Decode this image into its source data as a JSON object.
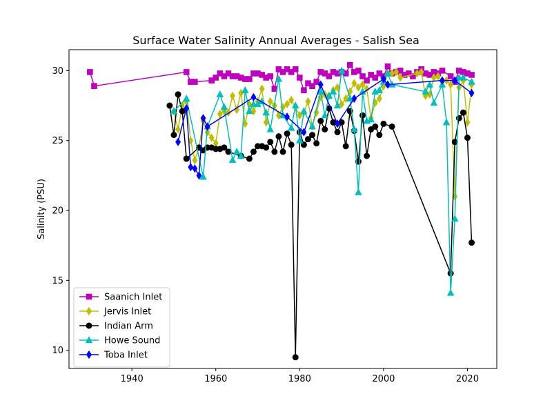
{
  "chart_data": {
    "type": "line",
    "title": "Surface Water Salinity Annual Averages - Salish Sea",
    "xlabel": "",
    "ylabel": "Salinity (PSU)",
    "xlim": [
      1925,
      2027
    ],
    "ylim": [
      8.7,
      31.5
    ],
    "xticks": [
      1940,
      1960,
      1980,
      2000,
      2020
    ],
    "yticks": [
      10,
      15,
      20,
      25,
      30
    ],
    "grid": false,
    "legend_position": "lower-left",
    "series": [
      {
        "name": "Saanich Inlet",
        "color": "#bf00bf",
        "marker": "square",
        "points": [
          [
            1930,
            29.9
          ],
          [
            1931,
            28.9
          ],
          [
            1953,
            29.9
          ],
          [
            1954,
            29.2
          ],
          [
            1955,
            29.2
          ],
          [
            1959,
            29.3
          ],
          [
            1960,
            29.5
          ],
          [
            1961,
            29.8
          ],
          [
            1962,
            29.6
          ],
          [
            1963,
            29.8
          ],
          [
            1964,
            29.6
          ],
          [
            1965,
            29.6
          ],
          [
            1966,
            29.5
          ],
          [
            1967,
            29.4
          ],
          [
            1968,
            29.4
          ],
          [
            1969,
            29.8
          ],
          [
            1970,
            29.8
          ],
          [
            1971,
            29.7
          ],
          [
            1972,
            29.5
          ],
          [
            1973,
            29.6
          ],
          [
            1974,
            28.7
          ],
          [
            1975,
            30.1
          ],
          [
            1976,
            29.9
          ],
          [
            1977,
            30.1
          ],
          [
            1978,
            29.9
          ],
          [
            1979,
            30.1
          ],
          [
            1980,
            29.5
          ],
          [
            1981,
            28.6
          ],
          [
            1982,
            29.1
          ],
          [
            1983,
            28.9
          ],
          [
            1984,
            29.2
          ],
          [
            1985,
            29.9
          ],
          [
            1986,
            29.8
          ],
          [
            1987,
            29.6
          ],
          [
            1988,
            29.9
          ],
          [
            1989,
            29.8
          ],
          [
            1990,
            29.9
          ],
          [
            1991,
            29.8
          ],
          [
            1992,
            30.4
          ],
          [
            1993,
            29.9
          ],
          [
            1994,
            30.0
          ],
          [
            1995,
            29.6
          ],
          [
            1996,
            29.3
          ],
          [
            1997,
            29.7
          ],
          [
            1998,
            29.5
          ],
          [
            1999,
            29.8
          ],
          [
            2000,
            29.6
          ],
          [
            2001,
            30.3
          ],
          [
            2002,
            29.8
          ],
          [
            2003,
            29.9
          ],
          [
            2004,
            30.0
          ],
          [
            2005,
            29.7
          ],
          [
            2006,
            29.8
          ],
          [
            2007,
            29.6
          ],
          [
            2008,
            29.9
          ],
          [
            2009,
            30.1
          ],
          [
            2010,
            29.8
          ],
          [
            2011,
            29.7
          ],
          [
            2012,
            29.9
          ],
          [
            2013,
            29.8
          ],
          [
            2014,
            30.0
          ],
          [
            2016,
            29.6
          ],
          [
            2017,
            29.2
          ],
          [
            2018,
            30.0
          ],
          [
            2019,
            29.9
          ],
          [
            2020,
            29.8
          ],
          [
            2021,
            29.7
          ]
        ]
      },
      {
        "name": "Jervis Inlet",
        "color": "#bfbf00",
        "marker": "diamond",
        "points": [
          [
            1950,
            27.1
          ],
          [
            1951,
            25.8
          ],
          [
            1952,
            27.5
          ],
          [
            1953,
            27.8
          ],
          [
            1954,
            25.0
          ],
          [
            1955,
            23.6
          ],
          [
            1956,
            24.5
          ],
          [
            1957,
            26.4
          ],
          [
            1958,
            25.6
          ],
          [
            1959,
            25.2
          ],
          [
            1960,
            24.8
          ],
          [
            1961,
            26.9
          ],
          [
            1962,
            27.1
          ],
          [
            1963,
            27.0
          ],
          [
            1964,
            28.2
          ],
          [
            1965,
            27.2
          ],
          [
            1966,
            28.4
          ],
          [
            1967,
            26.2
          ],
          [
            1968,
            27.6
          ],
          [
            1969,
            27.1
          ],
          [
            1970,
            27.8
          ],
          [
            1971,
            28.7
          ],
          [
            1972,
            26.3
          ],
          [
            1973,
            27.8
          ],
          [
            1974,
            27.5
          ],
          [
            1975,
            26.8
          ],
          [
            1976,
            27.4
          ],
          [
            1977,
            27.6
          ],
          [
            1978,
            27.9
          ],
          [
            1979,
            27.4
          ],
          [
            1980,
            26.8
          ],
          [
            1981,
            27.0
          ],
          [
            1982,
            27.8
          ],
          [
            1983,
            26.0
          ],
          [
            1984,
            27.0
          ],
          [
            1985,
            28.1
          ],
          [
            1986,
            28.3
          ],
          [
            1987,
            28.2
          ],
          [
            1988,
            28.6
          ],
          [
            1989,
            28.8
          ],
          [
            1990,
            27.6
          ],
          [
            1991,
            28.0
          ],
          [
            1992,
            28.5
          ],
          [
            1993,
            29.1
          ],
          [
            1994,
            28.8
          ],
          [
            1995,
            29.0
          ],
          [
            1996,
            28.7
          ],
          [
            1997,
            26.6
          ],
          [
            1998,
            27.7
          ],
          [
            1999,
            28.0
          ],
          [
            2000,
            28.9
          ],
          [
            2001,
            29.8
          ],
          [
            2002,
            29.8
          ],
          [
            2003,
            29.9
          ],
          [
            2004,
            29.5
          ],
          [
            2008,
            29.8
          ],
          [
            2009,
            29.9
          ],
          [
            2010,
            28.2
          ],
          [
            2011,
            28.3
          ],
          [
            2012,
            29.5
          ],
          [
            2013,
            29.6
          ],
          [
            2014,
            29.2
          ],
          [
            2015,
            29.3
          ],
          [
            2016,
            29.0
          ],
          [
            2017,
            21.0
          ],
          [
            2018,
            28.8
          ],
          [
            2019,
            29.3
          ],
          [
            2020,
            26.3
          ],
          [
            2021,
            29.0
          ]
        ]
      },
      {
        "name": "Indian Arm",
        "color": "#000000",
        "marker": "circle",
        "points": [
          [
            1949,
            27.5
          ],
          [
            1950,
            25.4
          ],
          [
            1951,
            28.3
          ],
          [
            1952,
            27.1
          ],
          [
            1953,
            23.7
          ],
          [
            1956,
            24.5
          ],
          [
            1957,
            24.3
          ],
          [
            1958,
            24.5
          ],
          [
            1959,
            24.5
          ],
          [
            1960,
            24.4
          ],
          [
            1961,
            24.4
          ],
          [
            1962,
            24.5
          ],
          [
            1963,
            24.2
          ],
          [
            1966,
            23.9
          ],
          [
            1968,
            23.7
          ],
          [
            1969,
            24.2
          ],
          [
            1970,
            24.6
          ],
          [
            1971,
            24.6
          ],
          [
            1972,
            24.5
          ],
          [
            1973,
            24.9
          ],
          [
            1974,
            24.2
          ],
          [
            1975,
            25.3
          ],
          [
            1976,
            24.2
          ],
          [
            1977,
            25.5
          ],
          [
            1978,
            24.7
          ],
          [
            1979,
            9.5
          ],
          [
            1980,
            25.6
          ],
          [
            1981,
            24.7
          ],
          [
            1982,
            25.1
          ],
          [
            1983,
            25.4
          ],
          [
            1984,
            24.8
          ],
          [
            1985,
            26.4
          ],
          [
            1986,
            25.8
          ],
          [
            1987,
            27.3
          ],
          [
            1988,
            26.3
          ],
          [
            1989,
            25.6
          ],
          [
            1990,
            26.3
          ],
          [
            1991,
            24.6
          ],
          [
            1992,
            27.1
          ],
          [
            1993,
            25.7
          ],
          [
            1994,
            23.5
          ],
          [
            1995,
            26.8
          ],
          [
            1996,
            23.9
          ],
          [
            1997,
            25.8
          ],
          [
            1998,
            26.0
          ],
          [
            1999,
            25.4
          ],
          [
            2000,
            26.2
          ],
          [
            2002,
            26.0
          ],
          [
            2016,
            15.5
          ],
          [
            2017,
            24.9
          ],
          [
            2018,
            26.6
          ],
          [
            2019,
            27.0
          ],
          [
            2020,
            25.2
          ],
          [
            2021,
            17.7
          ]
        ]
      },
      {
        "name": "Howe Sound",
        "color": "#00bfbf",
        "marker": "triangle",
        "points": [
          [
            1950,
            27.1
          ],
          [
            1953,
            28.0
          ],
          [
            1957,
            22.4
          ],
          [
            1958,
            26.0
          ],
          [
            1961,
            28.3
          ],
          [
            1962,
            27.4
          ],
          [
            1964,
            23.6
          ],
          [
            1965,
            24.2
          ],
          [
            1966,
            23.9
          ],
          [
            1967,
            28.6
          ],
          [
            1968,
            27.1
          ],
          [
            1969,
            27.6
          ],
          [
            1970,
            27.6
          ],
          [
            1971,
            27.8
          ],
          [
            1972,
            27.0
          ],
          [
            1973,
            25.8
          ],
          [
            1975,
            29.4
          ],
          [
            1976,
            26.8
          ],
          [
            1978,
            25.9
          ],
          [
            1979,
            27.5
          ],
          [
            1980,
            25.0
          ],
          [
            1981,
            27.1
          ],
          [
            1983,
            26.0
          ],
          [
            1985,
            28.5
          ],
          [
            1986,
            26.8
          ],
          [
            1987,
            28.2
          ],
          [
            1988,
            28.5
          ],
          [
            1989,
            27.5
          ],
          [
            1990,
            30.0
          ],
          [
            1992,
            28.0
          ],
          [
            1993,
            25.8
          ],
          [
            1994,
            21.3
          ],
          [
            1995,
            28.5
          ],
          [
            1996,
            26.4
          ],
          [
            1997,
            26.5
          ],
          [
            1998,
            28.5
          ],
          [
            1999,
            28.6
          ],
          [
            2000,
            29.2
          ],
          [
            2001,
            29.8
          ],
          [
            2002,
            29.0
          ],
          [
            2010,
            28.5
          ],
          [
            2011,
            29.0
          ],
          [
            2012,
            27.7
          ],
          [
            2014,
            29.0
          ],
          [
            2015,
            26.3
          ],
          [
            2016,
            14.1
          ],
          [
            2017,
            19.4
          ],
          [
            2018,
            29.5
          ],
          [
            2019,
            29.5
          ],
          [
            2021,
            29.2
          ]
        ]
      },
      {
        "name": "Toba Inlet",
        "color": "#0000ff",
        "marker": "diamond",
        "points": [
          [
            1951,
            24.9
          ],
          [
            1953,
            27.3
          ],
          [
            1954,
            23.1
          ],
          [
            1955,
            23.0
          ],
          [
            1956,
            22.5
          ],
          [
            1957,
            26.6
          ],
          [
            1958,
            26.0
          ],
          [
            1969,
            28.1
          ],
          [
            1977,
            26.7
          ],
          [
            1981,
            25.6
          ],
          [
            1985,
            29.0
          ],
          [
            1989,
            26.2
          ],
          [
            1993,
            28.0
          ],
          [
            2000,
            29.4
          ],
          [
            2001,
            29.0
          ],
          [
            2014,
            29.3
          ],
          [
            2017,
            29.3
          ],
          [
            2021,
            28.4
          ]
        ]
      }
    ]
  }
}
